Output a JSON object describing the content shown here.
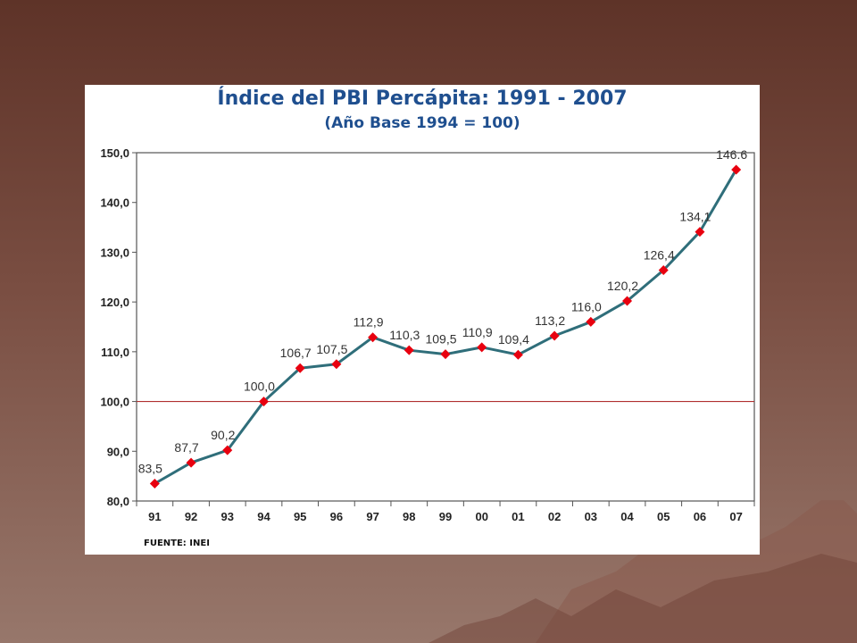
{
  "chart_data": {
    "type": "line",
    "title": "Índice del PBI Percápita: 1991 - 2007",
    "subtitle": "(Año Base 1994 = 100)",
    "categories": [
      "91",
      "92",
      "93",
      "94",
      "95",
      "96",
      "97",
      "98",
      "99",
      "00",
      "01",
      "02",
      "03",
      "04",
      "05",
      "06",
      "07"
    ],
    "values": [
      83.5,
      87.7,
      90.2,
      100.0,
      106.7,
      107.5,
      112.9,
      110.3,
      109.5,
      110.9,
      109.4,
      113.2,
      116.0,
      120.2,
      126.4,
      134.1,
      146.6
    ],
    "data_labels": [
      "83,5",
      "87,7",
      "90,2",
      "100,0",
      "106,7",
      "107,5",
      "112,9",
      "110,3",
      "109,5",
      "110,9",
      "109,4",
      "113,2",
      "116,0",
      "120,2",
      "126,4",
      "134,1",
      "146.6"
    ],
    "ylim": [
      80,
      150
    ],
    "yticks": [
      80,
      90,
      100,
      110,
      120,
      130,
      140,
      150
    ],
    "ytick_labels": [
      "80,0",
      "90,0",
      "100,0",
      "110,0",
      "120,0",
      "130,0",
      "140,0",
      "150,0"
    ],
    "reference_line": 100,
    "grid": false,
    "colors": {
      "line": "#2f6e7a",
      "marker": "#e8000f",
      "reference": "#b03030",
      "title": "#1f4f8f"
    }
  },
  "source": "FUENTE: INEI"
}
